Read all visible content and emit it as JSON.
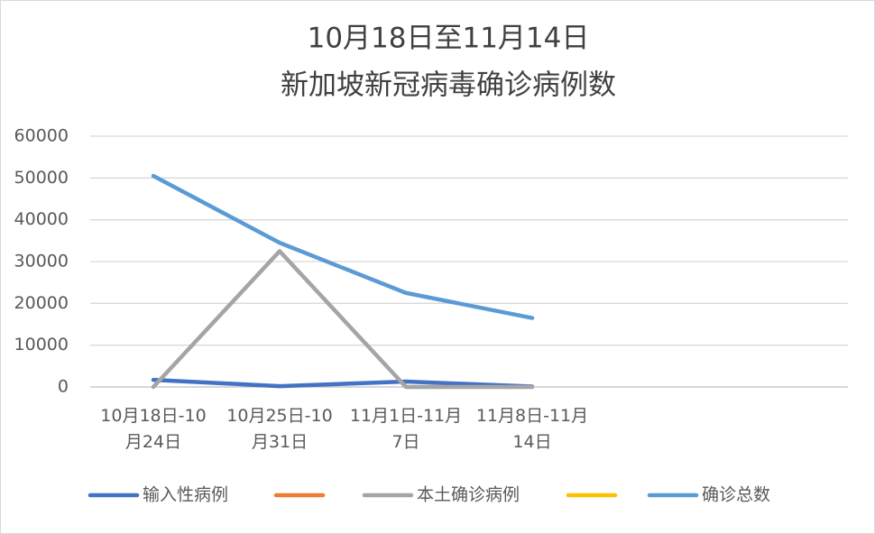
{
  "chart_data": {
    "type": "line",
    "title": [
      "10月18日至11月14日",
      "新加坡新冠病毒确诊病例数"
    ],
    "categories": [
      "10月18日-10月24日",
      "10月25日-10月31日",
      "11月1日-11月7日",
      "11月8日-11月14日",
      null,
      null
    ],
    "series": [
      {
        "name": "输入性病例",
        "color": "#4472c4",
        "values": [
          1700,
          200,
          1300,
          100,
          null,
          null
        ]
      },
      {
        "name": null,
        "color": "#ed7d31",
        "values": [
          null,
          null,
          null,
          null,
          null,
          null
        ]
      },
      {
        "name": "本土确诊病例",
        "color": "#a5a5a5",
        "values": [
          0,
          32500,
          0,
          0,
          null,
          null
        ]
      },
      {
        "name": null,
        "color": "#ffc000",
        "values": [
          null,
          null,
          null,
          null,
          null,
          null
        ]
      },
      {
        "name": "确诊总数",
        "color": "#5b9bd5",
        "values": [
          50500,
          34500,
          22500,
          16500,
          null,
          null
        ]
      }
    ],
    "ylim": [
      0,
      60000
    ],
    "yticks": [
      0,
      10000,
      20000,
      30000,
      40000,
      50000,
      60000
    ],
    "grid": true,
    "legend": "bottom"
  }
}
